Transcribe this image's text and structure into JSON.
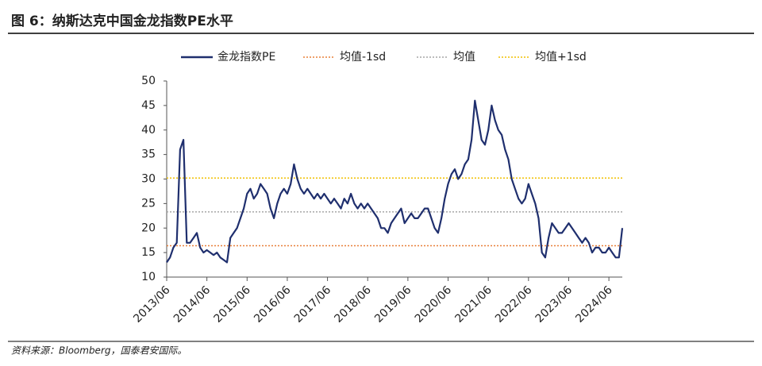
{
  "chart_data": {
    "type": "line",
    "title": "图 6：纳斯达克中国金龙指数PE水平",
    "source": "资料来源：Bloomberg，国泰君安国际。",
    "x": [
      "2013/06",
      "2013/07",
      "2013/08",
      "2013/09",
      "2013/10",
      "2013/11",
      "2013/12",
      "2014/01",
      "2014/02",
      "2014/03",
      "2014/04",
      "2014/05",
      "2014/06",
      "2014/07",
      "2014/08",
      "2014/09",
      "2014/10",
      "2014/11",
      "2014/12",
      "2015/01",
      "2015/02",
      "2015/03",
      "2015/04",
      "2015/05",
      "2015/06",
      "2015/07",
      "2015/08",
      "2015/09",
      "2015/10",
      "2015/11",
      "2015/12",
      "2016/01",
      "2016/02",
      "2016/03",
      "2016/04",
      "2016/05",
      "2016/06",
      "2016/07",
      "2016/08",
      "2016/09",
      "2016/10",
      "2016/11",
      "2016/12",
      "2017/01",
      "2017/02",
      "2017/03",
      "2017/04",
      "2017/05",
      "2017/06",
      "2017/07",
      "2017/08",
      "2017/09",
      "2017/10",
      "2017/11",
      "2017/12",
      "2018/01",
      "2018/02",
      "2018/03",
      "2018/04",
      "2018/05",
      "2018/06",
      "2018/07",
      "2018/08",
      "2018/09",
      "2018/10",
      "2018/11",
      "2018/12",
      "2019/01",
      "2019/02",
      "2019/03",
      "2019/04",
      "2019/05",
      "2019/06",
      "2019/07",
      "2019/08",
      "2019/09",
      "2019/10",
      "2019/11",
      "2019/12",
      "2020/01",
      "2020/02",
      "2020/03",
      "2020/04",
      "2020/05",
      "2020/06",
      "2020/07",
      "2020/08",
      "2020/09",
      "2020/10",
      "2020/11",
      "2020/12",
      "2021/01",
      "2021/02",
      "2021/03",
      "2021/04",
      "2021/05",
      "2021/06",
      "2021/07",
      "2021/08",
      "2021/09",
      "2021/10",
      "2021/11",
      "2021/12",
      "2022/01",
      "2022/02",
      "2022/03",
      "2022/04",
      "2022/05",
      "2022/06",
      "2022/07",
      "2022/08",
      "2022/09",
      "2022/10",
      "2022/11",
      "2022/12",
      "2023/01",
      "2023/02",
      "2023/03",
      "2023/04",
      "2023/05",
      "2023/06",
      "2023/07",
      "2023/08",
      "2023/09",
      "2023/10",
      "2023/11",
      "2023/12",
      "2024/01",
      "2024/02",
      "2024/03",
      "2024/04",
      "2024/05",
      "2024/06",
      "2024/07",
      "2024/08",
      "2024/09",
      "2024/10"
    ],
    "series": [
      {
        "name": "金龙指数PE",
        "color": "#1f2f6e",
        "values": [
          13,
          14,
          16,
          17,
          36,
          38,
          17,
          17,
          18,
          19,
          16,
          15,
          15.5,
          15,
          14.5,
          15,
          14,
          13.5,
          13,
          18,
          19,
          20,
          22,
          24,
          27,
          28,
          26,
          27,
          29,
          28,
          27,
          24,
          22,
          25,
          27,
          28,
          27,
          29,
          33,
          30,
          28,
          27,
          28,
          27,
          26,
          27,
          26,
          27,
          26,
          25,
          26,
          25,
          24,
          26,
          25,
          27,
          25,
          24,
          25,
          24,
          25,
          24,
          23,
          22,
          20,
          20,
          19,
          21,
          22,
          23,
          24,
          21,
          22,
          23,
          22,
          22,
          23,
          24,
          24,
          22,
          20,
          19,
          22,
          26,
          29,
          31,
          32,
          30,
          31,
          33,
          34,
          38,
          46,
          42,
          38,
          37,
          40,
          45,
          42,
          40,
          39,
          36,
          34,
          30,
          28,
          26,
          25,
          26,
          29,
          27,
          25,
          22,
          15,
          14,
          18,
          21,
          20,
          19,
          19,
          20,
          21,
          20,
          19,
          18,
          17,
          18,
          17,
          15,
          16,
          16,
          15,
          15,
          16,
          15,
          14,
          14,
          20
        ]
      }
    ],
    "reference_lines": [
      {
        "name": "均值-1sd",
        "color": "#e8803a",
        "value": 16.4
      },
      {
        "name": "均值",
        "color": "#a6a6a6",
        "value": 23.3
      },
      {
        "name": "均值+1sd",
        "color": "#f0c000",
        "value": 30.2
      }
    ],
    "xlim": [
      "2013/06",
      "2024/10"
    ],
    "xticks": [
      "2013/06",
      "2014/06",
      "2015/06",
      "2016/06",
      "2017/06",
      "2018/06",
      "2019/06",
      "2020/06",
      "2021/06",
      "2022/06",
      "2023/06",
      "2024/06"
    ],
    "ylim": [
      10,
      50
    ],
    "yticks": [
      10,
      15,
      20,
      25,
      30,
      35,
      40,
      45,
      50
    ]
  }
}
